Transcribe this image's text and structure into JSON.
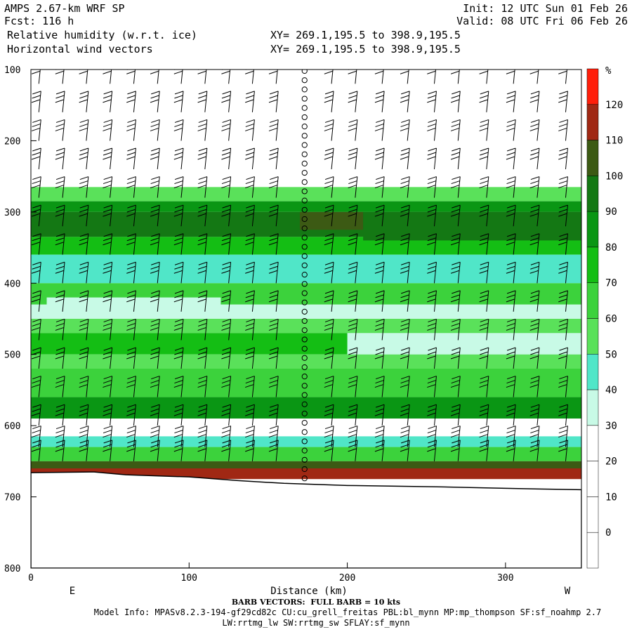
{
  "header": {
    "title": "AMPS 2.67-km WRF SP",
    "forecast": "Fcst: 116 h",
    "field": "Relative humidity (w.r.t. ice)",
    "vectors": "Horizontal wind vectors",
    "xy1": "XY= 269.1,195.5 to 398.9,195.5",
    "xy2": "XY= 269.1,195.5 to 398.9,195.5",
    "init": "Init: 12 UTC Sun 01 Feb 26",
    "valid": "Valid: 08 UTC Fri 06 Feb 26"
  },
  "footer": {
    "barb_note": "BARB VECTORS:  FULL BARB = 10 kts",
    "model_info": "Model Info: MPASv8.2.3-194-gf29cd82c CU:cu_grell_freitas PBL:bl_mynn MP:mp_thompson SF:sf_noahmp 2.7",
    "model_info2": "LW:rrtmg_lw SW:rrtmg_sw SFLAY:sf_mynn"
  },
  "chart_data": {
    "type": "heatmap",
    "xlabel": "Distance (km)",
    "x_end_labels": [
      "E",
      "W"
    ],
    "ylim": [
      800,
      100
    ],
    "xlim": [
      0,
      348
    ],
    "x_ticks": [
      0,
      100,
      200,
      300
    ],
    "y_ticks": [
      100,
      200,
      300,
      400,
      500,
      600,
      700,
      800
    ],
    "colorbar": {
      "unit": "%",
      "levels": [
        0,
        10,
        20,
        30,
        40,
        50,
        60,
        70,
        80,
        90,
        100,
        110,
        120
      ],
      "colors": [
        "#ffffff",
        "#ffffff",
        "#ffffff",
        "#ffffff",
        "#c8fae6",
        "#50e6c8",
        "#5ae15a",
        "#3cd23c",
        "#14be14",
        "#0a9614",
        "#147814",
        "#3c5a14",
        "#a02814",
        "#ff1e0a"
      ]
    },
    "rh_bands": [
      {
        "top": 265,
        "bottom": 285,
        "rh_pct": 50
      },
      {
        "top": 285,
        "bottom": 300,
        "rh_pct": 80
      },
      {
        "top": 300,
        "bottom": 335,
        "rh_pct": 90
      },
      {
        "top": 335,
        "bottom": 360,
        "rh_pct": 70
      },
      {
        "top": 360,
        "bottom": 400,
        "rh_pct": 45
      },
      {
        "top": 400,
        "bottom": 430,
        "rh_pct": 60
      },
      {
        "top": 430,
        "bottom": 450,
        "rh_pct": 35
      },
      {
        "top": 450,
        "bottom": 470,
        "rh_pct": 55
      },
      {
        "top": 470,
        "bottom": 500,
        "rh_pct": 70
      },
      {
        "top": 500,
        "bottom": 520,
        "rh_pct": 50
      },
      {
        "top": 520,
        "bottom": 560,
        "rh_pct": 65
      },
      {
        "top": 560,
        "bottom": 590,
        "rh_pct": 80
      },
      {
        "top": 590,
        "bottom": 615,
        "rh_pct": 25
      },
      {
        "top": 615,
        "bottom": 630,
        "rh_pct": 45
      },
      {
        "top": 630,
        "bottom": 650,
        "rh_pct": 60
      },
      {
        "top": 650,
        "bottom": 660,
        "rh_pct": 100
      },
      {
        "top": 660,
        "bottom": 675,
        "rh_pct": 115
      }
    ],
    "rh_patches": [
      {
        "x0": 10,
        "x1": 120,
        "top": 420,
        "bottom": 445,
        "rh_pct": 30
      },
      {
        "x0": 170,
        "x1": 210,
        "top": 300,
        "bottom": 325,
        "rh_pct": 105
      },
      {
        "x0": 210,
        "x1": 348,
        "top": 300,
        "bottom": 340,
        "rh_pct": 95
      },
      {
        "x0": 200,
        "x1": 348,
        "top": 470,
        "bottom": 500,
        "rh_pct": 35
      }
    ],
    "terrain": [
      {
        "x": 0,
        "p": 666
      },
      {
        "x": 40,
        "p": 665
      },
      {
        "x": 60,
        "p": 669
      },
      {
        "x": 100,
        "p": 672
      },
      {
        "x": 130,
        "p": 677
      },
      {
        "x": 160,
        "p": 681
      },
      {
        "x": 200,
        "p": 684
      },
      {
        "x": 260,
        "p": 686
      },
      {
        "x": 300,
        "p": 688
      },
      {
        "x": 348,
        "p": 690
      }
    ],
    "wind_barbs": {
      "x_columns": [
        5,
        20,
        35,
        50,
        65,
        80,
        95,
        110,
        125,
        140,
        155,
        190,
        205,
        222,
        238,
        255,
        270,
        288,
        305,
        320,
        338
      ],
      "levels": [
        120,
        160,
        200,
        240,
        280,
        320,
        360,
        400,
        440,
        480,
        520,
        560,
        600,
        630,
        650
      ],
      "calm_column_x": 173
    }
  }
}
